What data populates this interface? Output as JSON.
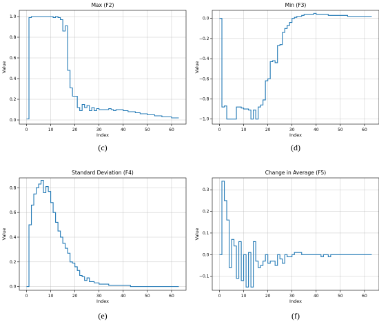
{
  "chart_data": [
    {
      "type": "line",
      "caption": "(c)",
      "title": "Max (F2)",
      "xlabel": "Index",
      "ylabel": "Value",
      "xlim": [
        -3,
        66
      ],
      "ylim": [
        -0.04,
        1.06
      ],
      "xticks": [
        0,
        10,
        20,
        30,
        40,
        50,
        60
      ],
      "yticks": [
        0.0,
        0.2,
        0.4,
        0.6,
        0.8,
        1.0
      ],
      "ytick_labels": [
        "0.0",
        "0.2",
        "0.4",
        "0.6",
        "0.8",
        "1.0"
      ],
      "grid": true,
      "step": true,
      "series": [
        {
          "values": [
            0.01,
            0.99,
            1.0,
            1.0,
            1.0,
            1.0,
            1.0,
            1.0,
            1.0,
            1.0,
            1.0,
            0.99,
            1.0,
            0.99,
            0.97,
            0.86,
            0.91,
            0.48,
            0.31,
            0.23,
            0.23,
            0.12,
            0.09,
            0.15,
            0.12,
            0.14,
            0.09,
            0.12,
            0.09,
            0.11,
            0.1,
            0.1,
            0.1,
            0.1,
            0.11,
            0.1,
            0.09,
            0.1,
            0.1,
            0.1,
            0.09,
            0.09,
            0.08,
            0.08,
            0.08,
            0.07,
            0.07,
            0.06,
            0.06,
            0.06,
            0.05,
            0.05,
            0.05,
            0.04,
            0.04,
            0.04,
            0.03,
            0.03,
            0.03,
            0.03,
            0.02,
            0.02,
            0.02,
            0.02
          ]
        }
      ]
    },
    {
      "type": "line",
      "caption": "(d)",
      "title": "Min (F3)",
      "xlabel": "Index",
      "ylabel": "Value",
      "xlim": [
        -3,
        66
      ],
      "ylim": [
        -1.05,
        0.08
      ],
      "xticks": [
        0,
        10,
        20,
        30,
        40,
        50,
        60
      ],
      "yticks": [
        -1.0,
        -0.8,
        -0.6,
        -0.4,
        -0.2,
        0.0
      ],
      "ytick_labels": [
        "−1.0",
        "−0.8",
        "−0.6",
        "−0.4",
        "−0.2",
        "0.0"
      ],
      "grid": true,
      "step": true,
      "series": [
        {
          "values": [
            0.0,
            -0.88,
            -0.87,
            -1.0,
            -1.0,
            -1.0,
            -1.0,
            -0.88,
            -0.88,
            -0.89,
            -0.9,
            -0.9,
            -0.91,
            -1.0,
            -0.91,
            -1.0,
            -0.88,
            -0.86,
            -0.81,
            -0.62,
            -0.6,
            -0.43,
            -0.42,
            -0.44,
            -0.27,
            -0.26,
            -0.14,
            -0.1,
            -0.07,
            -0.04,
            0.0,
            0.01,
            0.02,
            0.02,
            0.03,
            0.04,
            0.04,
            0.04,
            0.04,
            0.05,
            0.04,
            0.04,
            0.04,
            0.04,
            0.04,
            0.03,
            0.03,
            0.03,
            0.03,
            0.03,
            0.03,
            0.03,
            0.03,
            0.02,
            0.02,
            0.02,
            0.02,
            0.02,
            0.02,
            0.02,
            0.02,
            0.02,
            0.02,
            0.02
          ]
        }
      ]
    },
    {
      "type": "line",
      "caption": "(e)",
      "title": "Standard Deviation (F4)",
      "xlabel": "Index",
      "ylabel": "Value",
      "xlim": [
        -3,
        66
      ],
      "ylim": [
        -0.03,
        0.88
      ],
      "xticks": [
        0,
        10,
        20,
        30,
        40,
        50,
        60
      ],
      "yticks": [
        0.0,
        0.2,
        0.4,
        0.6,
        0.8
      ],
      "ytick_labels": [
        "0.0",
        "0.2",
        "0.4",
        "0.6",
        "0.8"
      ],
      "grid": true,
      "step": true,
      "series": [
        {
          "values": [
            0.0,
            0.5,
            0.66,
            0.75,
            0.8,
            0.83,
            0.86,
            0.76,
            0.81,
            0.77,
            0.68,
            0.6,
            0.52,
            0.45,
            0.4,
            0.35,
            0.31,
            0.27,
            0.2,
            0.19,
            0.16,
            0.13,
            0.09,
            0.08,
            0.05,
            0.07,
            0.04,
            0.04,
            0.03,
            0.03,
            0.02,
            0.02,
            0.02,
            0.02,
            0.01,
            0.01,
            0.01,
            0.01,
            0.01,
            0.01,
            0.01,
            0.01,
            0.01,
            0.0,
            0.0,
            0.0,
            0.0,
            0.0,
            0.0,
            0.0,
            0.0,
            0.0,
            0.0,
            0.0,
            0.0,
            0.0,
            0.0,
            0.0,
            0.0,
            0.0,
            0.0,
            0.0,
            0.0,
            0.0
          ]
        }
      ]
    },
    {
      "type": "line",
      "caption": "(f)",
      "title": "Change in Average (F5)",
      "xlabel": "Index",
      "ylabel": "Value",
      "xlim": [
        -3,
        66
      ],
      "ylim": [
        -0.165,
        0.355
      ],
      "xticks": [
        0,
        10,
        20,
        30,
        40,
        50,
        60
      ],
      "yticks": [
        -0.1,
        0.0,
        0.1,
        0.2,
        0.3
      ],
      "ytick_labels": [
        "−0.1",
        "0.0",
        "0.1",
        "0.2",
        "0.3"
      ],
      "grid": true,
      "step": true,
      "series": [
        {
          "values": [
            0.0,
            0.34,
            0.25,
            0.16,
            -0.06,
            0.07,
            0.04,
            -0.11,
            0.06,
            -0.12,
            0.0,
            -0.15,
            0.01,
            -0.15,
            0.06,
            -0.03,
            -0.06,
            -0.05,
            -0.03,
            0.0,
            -0.04,
            -0.03,
            -0.03,
            -0.05,
            0.0,
            -0.02,
            -0.04,
            0.0,
            -0.01,
            -0.01,
            0.0,
            0.01,
            0.01,
            0.01,
            0.0,
            0.0,
            0.0,
            0.0,
            0.0,
            0.0,
            0.0,
            0.0,
            -0.01,
            0.0,
            0.0,
            -0.01,
            0.0,
            0.0,
            0.0,
            0.0,
            0.0,
            0.0,
            0.0,
            0.0,
            0.0,
            0.0,
            0.0,
            0.0,
            0.0,
            0.0,
            0.0,
            0.0,
            0.0,
            0.0
          ]
        }
      ]
    }
  ]
}
